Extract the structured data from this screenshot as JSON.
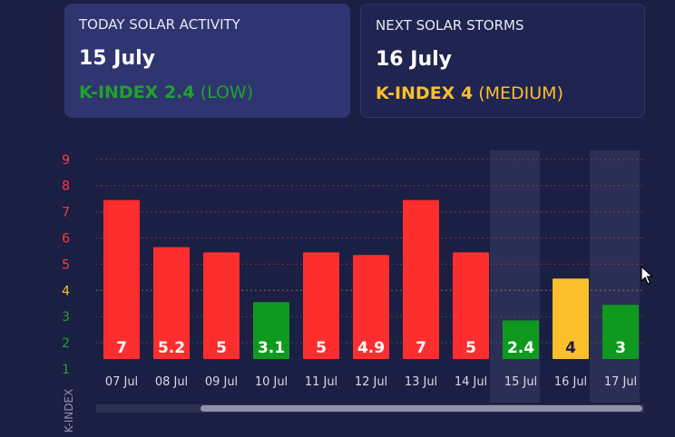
{
  "today": {
    "label": "TODAY SOLAR ACTIVITY",
    "date": "15 July",
    "kindex_label": "K-INDEX 2.4",
    "level": "(LOW)",
    "color": "#1fa32a"
  },
  "next": {
    "label": "NEXT SOLAR STORMS",
    "date": "16 July",
    "kindex_label": "K-INDEX 4",
    "level": "(MEDIUM)",
    "color": "#fbbf2c"
  },
  "chart_data": {
    "type": "bar",
    "categories": [
      "07 Jul",
      "08 Jul",
      "09 Jul",
      "10 Jul",
      "11 Jul",
      "12 Jul",
      "13 Jul",
      "14 Jul",
      "15 Jul",
      "16 Jul",
      "17 Jul"
    ],
    "values": [
      7,
      5.2,
      5,
      3.1,
      5,
      4.9,
      7,
      5,
      2.4,
      4,
      3
    ],
    "value_labels": [
      "7",
      "5.2",
      "5",
      "3.1",
      "5",
      "4.9",
      "7",
      "5",
      "2.4",
      "4",
      "3"
    ],
    "bar_colors": [
      "#ff2e2e",
      "#ff2e2e",
      "#ff2e2e",
      "#0f9a1f",
      "#ff2e2e",
      "#ff2e2e",
      "#ff2e2e",
      "#ff2e2e",
      "#0f9a1f",
      "#fbbf2c",
      "#0f9a1f"
    ],
    "highlighted": [
      "15 Jul",
      "17 Jul"
    ],
    "ylabel": "K-INDEX",
    "yticks": [
      "1",
      "2",
      "3",
      "4",
      "5",
      "6",
      "7",
      "8",
      "9"
    ],
    "ytick_colors": [
      "#1fa32a",
      "#1fa32a",
      "#1fa32a",
      "#fbbf2c",
      "#ff3b3b",
      "#ff3b3b",
      "#ff3b3b",
      "#ff3b3b",
      "#ff3b3b"
    ],
    "ylim": [
      1,
      9
    ],
    "grid": true
  }
}
